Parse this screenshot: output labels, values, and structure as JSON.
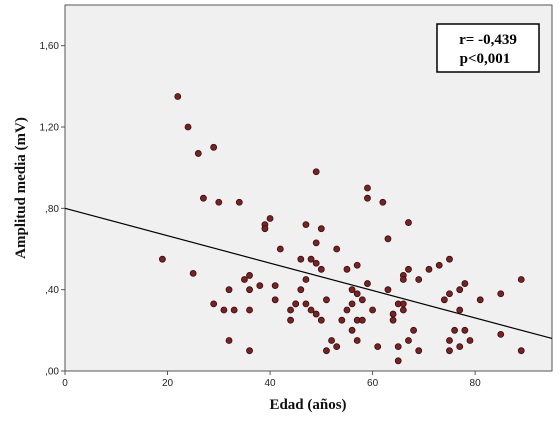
{
  "chart_data": {
    "type": "scatter",
    "xlabel": "Edad (años)",
    "ylabel": "Amplitud media (mV)",
    "xlim": [
      0,
      95
    ],
    "ylim": [
      0,
      1.8
    ],
    "x_ticks": [
      0,
      20,
      40,
      60,
      80
    ],
    "x_tick_labels": [
      "0",
      "20",
      "40",
      "60",
      "80"
    ],
    "y_ticks": [
      0,
      0.4,
      0.8,
      1.2,
      1.6
    ],
    "y_tick_labels": [
      ",00",
      ",40",
      ",80",
      "1,20",
      "1,60"
    ],
    "grid": false,
    "annotation": {
      "line1": "r= -0,439",
      "line2": "p<0,001"
    },
    "regression_line": {
      "x": [
        0,
        95
      ],
      "y": [
        0.8,
        0.16
      ]
    },
    "marker_color": "#8b1a1a",
    "points": [
      [
        19,
        0.55
      ],
      [
        22,
        1.35
      ],
      [
        24,
        1.2
      ],
      [
        25,
        0.48
      ],
      [
        26,
        1.07
      ],
      [
        27,
        0.85
      ],
      [
        29,
        1.1
      ],
      [
        29,
        0.33
      ],
      [
        30,
        0.83
      ],
      [
        31,
        0.3
      ],
      [
        32,
        0.4
      ],
      [
        32,
        0.15
      ],
      [
        33,
        0.3
      ],
      [
        34,
        0.83
      ],
      [
        35,
        0.45
      ],
      [
        36,
        0.47
      ],
      [
        36,
        0.4
      ],
      [
        36,
        0.3
      ],
      [
        36,
        0.1
      ],
      [
        38,
        0.42
      ],
      [
        39,
        0.72
      ],
      [
        39,
        0.7
      ],
      [
        40,
        0.75
      ],
      [
        41,
        0.42
      ],
      [
        41,
        0.35
      ],
      [
        42,
        0.6
      ],
      [
        44,
        0.3
      ],
      [
        44,
        0.25
      ],
      [
        45,
        0.33
      ],
      [
        45,
        0.33
      ],
      [
        46,
        0.4
      ],
      [
        46,
        0.55
      ],
      [
        47,
        0.72
      ],
      [
        47,
        0.45
      ],
      [
        47,
        0.33
      ],
      [
        48,
        0.55
      ],
      [
        48,
        0.3
      ],
      [
        49,
        0.98
      ],
      [
        49,
        0.63
      ],
      [
        49,
        0.53
      ],
      [
        49,
        0.28
      ],
      [
        50,
        0.7
      ],
      [
        50,
        0.5
      ],
      [
        50,
        0.25
      ],
      [
        51,
        0.35
      ],
      [
        51,
        0.1
      ],
      [
        52,
        0.15
      ],
      [
        53,
        0.6
      ],
      [
        53,
        0.12
      ],
      [
        54,
        0.25
      ],
      [
        55,
        0.5
      ],
      [
        55,
        0.3
      ],
      [
        56,
        0.4
      ],
      [
        56,
        0.33
      ],
      [
        56,
        0.2
      ],
      [
        57,
        0.52
      ],
      [
        57,
        0.38
      ],
      [
        57,
        0.25
      ],
      [
        57,
        0.15
      ],
      [
        58,
        0.35
      ],
      [
        58,
        0.25
      ],
      [
        59,
        0.9
      ],
      [
        59,
        0.85
      ],
      [
        59,
        0.43
      ],
      [
        60,
        0.3
      ],
      [
        61,
        0.12
      ],
      [
        62,
        0.83
      ],
      [
        63,
        0.65
      ],
      [
        63,
        0.4
      ],
      [
        64,
        0.28
      ],
      [
        64,
        0.25
      ],
      [
        65,
        0.33
      ],
      [
        65,
        0.12
      ],
      [
        65,
        0.05
      ],
      [
        66,
        0.47
      ],
      [
        66,
        0.45
      ],
      [
        66,
        0.33
      ],
      [
        66,
        0.3
      ],
      [
        67,
        0.73
      ],
      [
        67,
        0.5
      ],
      [
        67,
        0.15
      ],
      [
        68,
        0.2
      ],
      [
        69,
        0.45
      ],
      [
        69,
        0.1
      ],
      [
        71,
        0.5
      ],
      [
        73,
        0.52
      ],
      [
        74,
        0.35
      ],
      [
        75,
        0.55
      ],
      [
        75,
        0.38
      ],
      [
        75,
        0.15
      ],
      [
        75,
        0.1
      ],
      [
        76,
        0.2
      ],
      [
        77,
        0.4
      ],
      [
        77,
        0.3
      ],
      [
        77,
        0.12
      ],
      [
        78,
        0.43
      ],
      [
        78,
        0.2
      ],
      [
        79,
        0.15
      ],
      [
        81,
        0.35
      ],
      [
        85,
        0.38
      ],
      [
        85,
        0.18
      ],
      [
        89,
        0.45
      ],
      [
        89,
        0.1
      ]
    ]
  }
}
